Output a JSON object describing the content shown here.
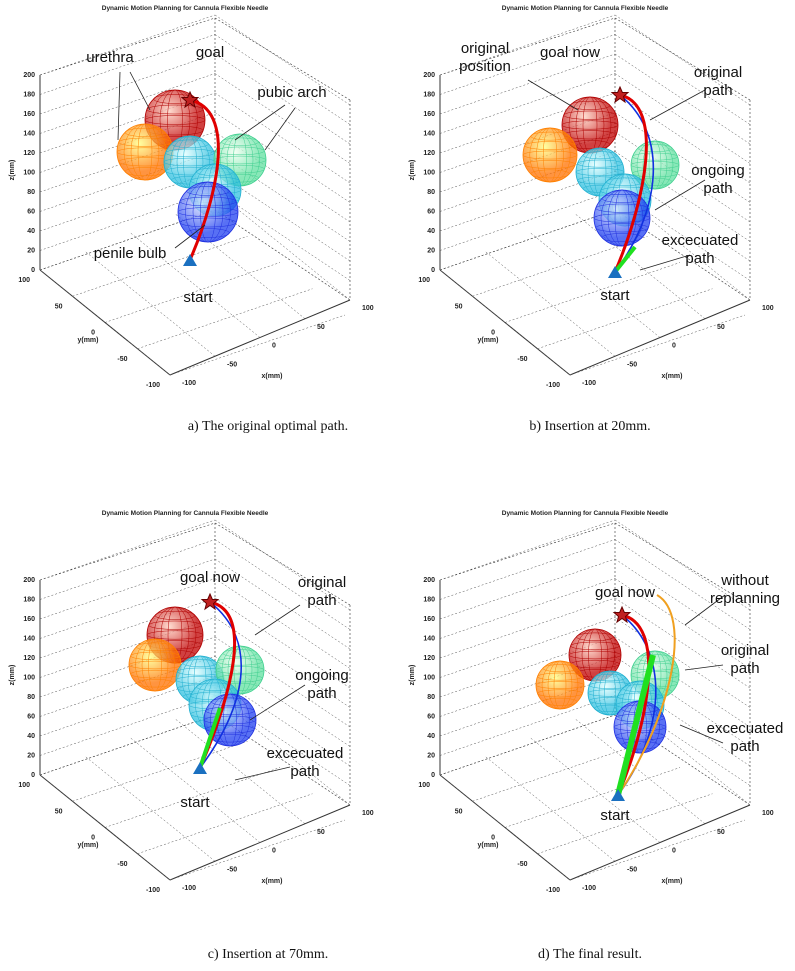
{
  "panels": [
    {
      "title": "Dynamic Motion Planning for Cannula Flexible Needle",
      "z_label": "z(mm)",
      "y_label": "y(mm)",
      "x_label": "x(mm)",
      "z_ticks": [
        0,
        20,
        40,
        60,
        80,
        100,
        120,
        140,
        160,
        180,
        200
      ],
      "y_ticks": [
        100,
        50,
        0,
        -50,
        -100
      ],
      "x_ticks": [
        -100,
        -50,
        0,
        50,
        100
      ],
      "annotations": [
        {
          "lines": [
            "goal"
          ]
        },
        {
          "lines": [
            "urethra"
          ]
        },
        {
          "lines": [
            "pubic arch"
          ]
        },
        {
          "lines": [
            "penile bulb"
          ]
        },
        {
          "lines": [
            "start"
          ]
        }
      ],
      "caption": "a) The original optimal path."
    },
    {
      "title": "Dynamic Motion Planning for Cannula Flexible Needle",
      "z_label": "z(mm)",
      "y_label": "y(mm)",
      "x_label": "x(mm)",
      "z_ticks": [
        0,
        20,
        40,
        60,
        80,
        100,
        120,
        140,
        160,
        180,
        200
      ],
      "y_ticks": [
        100,
        50,
        0,
        -50,
        -100
      ],
      "x_ticks": [
        -100,
        -50,
        0,
        50,
        100
      ],
      "annotations": [
        {
          "lines": [
            "original",
            "position"
          ]
        },
        {
          "lines": [
            "goal now"
          ]
        },
        {
          "lines": [
            "original",
            "path"
          ]
        },
        {
          "lines": [
            "ongoing",
            "path"
          ]
        },
        {
          "lines": [
            "excecuated",
            "path"
          ]
        },
        {
          "lines": [
            "start"
          ]
        }
      ],
      "caption": "b) Insertion at 20mm."
    },
    {
      "title": "Dynamic Motion Planning for Cannula Flexible Needle",
      "z_label": "z(mm)",
      "y_label": "y(mm)",
      "x_label": "x(mm)",
      "z_ticks": [
        0,
        20,
        40,
        60,
        80,
        100,
        120,
        140,
        160,
        180,
        200
      ],
      "y_ticks": [
        100,
        50,
        0,
        -50,
        -100
      ],
      "x_ticks": [
        -100,
        -50,
        0,
        50,
        100
      ],
      "annotations": [
        {
          "lines": [
            "goal now"
          ]
        },
        {
          "lines": [
            "original",
            "path"
          ]
        },
        {
          "lines": [
            "ongoing",
            "path"
          ]
        },
        {
          "lines": [
            "excecuated",
            "path"
          ]
        },
        {
          "lines": [
            "start"
          ]
        }
      ],
      "caption": "c) Insertion at 70mm."
    },
    {
      "title": "Dynamic Motion Planning for Cannula Flexible Needle",
      "z_label": "z(mm)",
      "y_label": "y(mm)",
      "x_label": "x(mm)",
      "z_ticks": [
        0,
        20,
        40,
        60,
        80,
        100,
        120,
        140,
        160,
        180,
        200
      ],
      "y_ticks": [
        100,
        50,
        0,
        -50,
        -100
      ],
      "x_ticks": [
        -100,
        -50,
        0,
        50,
        100
      ],
      "annotations": [
        {
          "lines": [
            "goal now"
          ]
        },
        {
          "lines": [
            "without",
            "replanning"
          ]
        },
        {
          "lines": [
            "original",
            "path"
          ]
        },
        {
          "lines": [
            "excecuated",
            "path"
          ]
        },
        {
          "lines": [
            "start"
          ]
        }
      ],
      "caption": "d) The final result."
    }
  ]
}
